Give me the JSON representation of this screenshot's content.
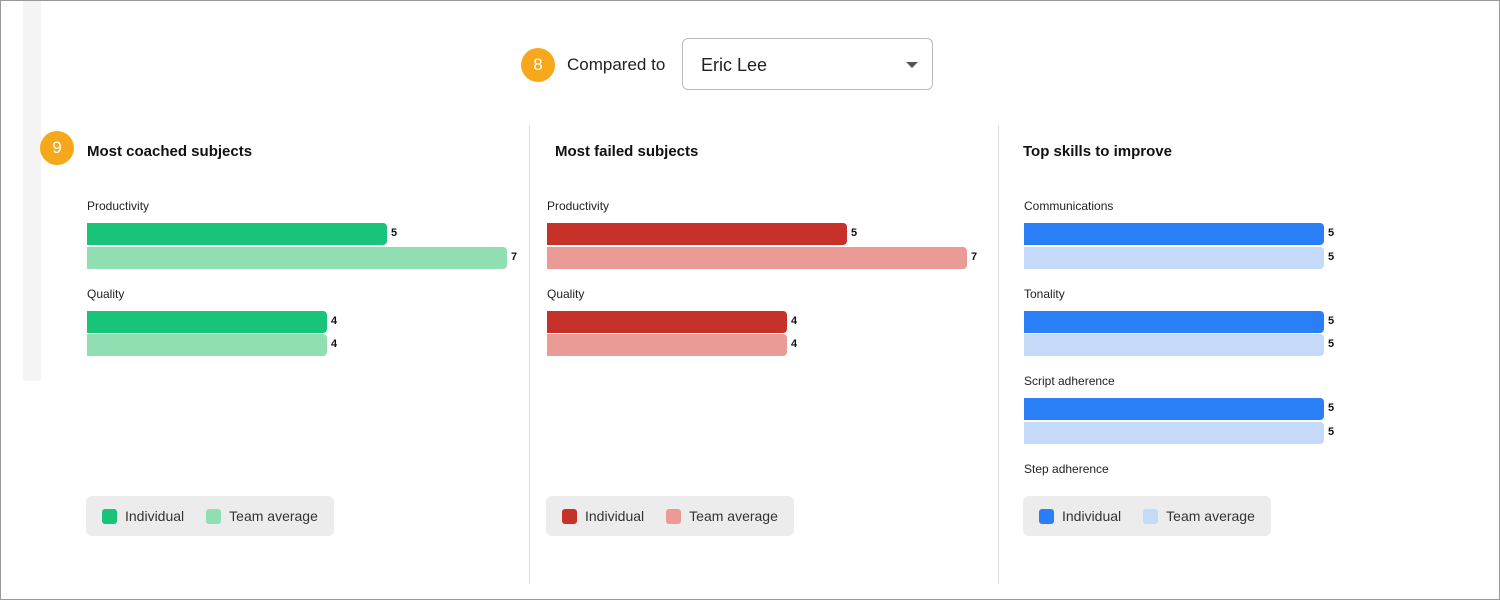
{
  "header": {
    "step_badge": "8",
    "label": "Compared to",
    "dropdown": {
      "selected": "Eric Lee"
    }
  },
  "section_badge": "9",
  "chart_data": [
    {
      "type": "bar",
      "title": "Most coached subjects",
      "categories": [
        "Productivity",
        "Quality"
      ],
      "series": [
        {
          "name": "Individual",
          "color": "#17c47a",
          "values": [
            5,
            4
          ]
        },
        {
          "name": "Team average",
          "color": "#8fdfb2",
          "values": [
            7,
            4
          ]
        }
      ]
    },
    {
      "type": "bar",
      "title": "Most failed subjects",
      "categories": [
        "Productivity",
        "Quality"
      ],
      "series": [
        {
          "name": "Individual",
          "color": "#c6322a",
          "values": [
            5,
            4
          ]
        },
        {
          "name": "Team average",
          "color": "#eb9b96",
          "values": [
            7,
            4
          ]
        }
      ]
    },
    {
      "type": "bar",
      "title": "Top skills to improve",
      "categories": [
        "Communications",
        "Tonality",
        "Script adherence",
        "Step adherence"
      ],
      "series": [
        {
          "name": "Individual",
          "color": "#2a7ef6",
          "values": [
            5,
            5,
            5,
            null
          ]
        },
        {
          "name": "Team average",
          "color": "#c5d9f9",
          "values": [
            5,
            5,
            5,
            null
          ]
        }
      ]
    }
  ]
}
